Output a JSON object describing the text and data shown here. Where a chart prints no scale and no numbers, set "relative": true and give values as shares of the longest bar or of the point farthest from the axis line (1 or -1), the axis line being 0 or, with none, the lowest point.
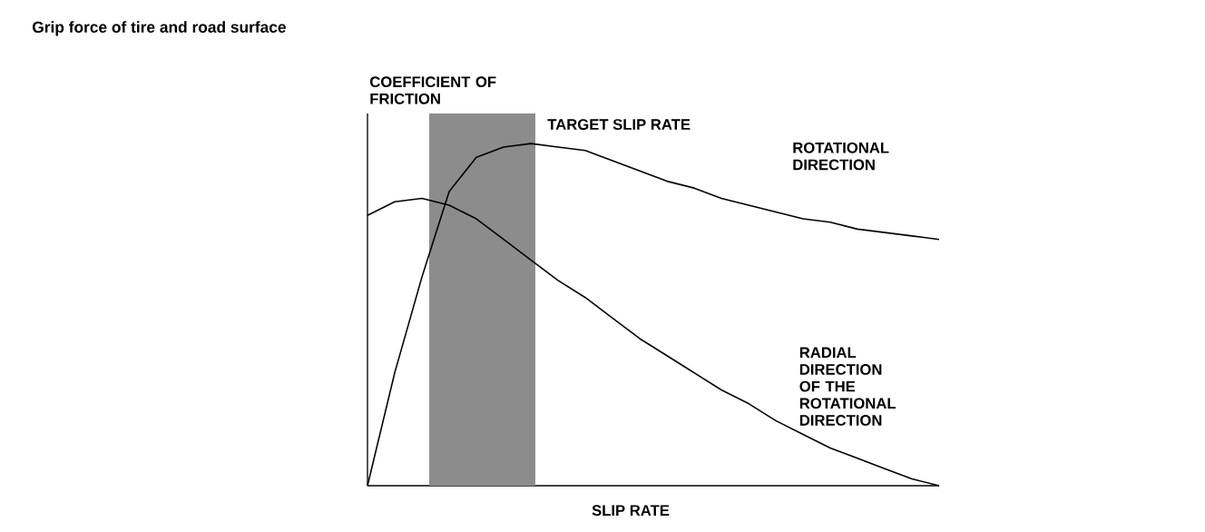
{
  "chart_data": {
    "type": "line",
    "title": "Grip force of tire and road surface",
    "xlabel": "SLIP RATE",
    "ylabel": "COEFFICIENT OF FRICTION",
    "relative": true,
    "categories": [
      null,
      null,
      null,
      null,
      null,
      null,
      null,
      null,
      null,
      null,
      null,
      null,
      null,
      null,
      null,
      null,
      null,
      null,
      null,
      null,
      null,
      null
    ],
    "annotations": [
      "TARGET SLIP RATE"
    ],
    "series": [
      {
        "name": "ROTATIONAL DIRECTION",
        "color": "#000000",
        "values": [
          0,
          0.33,
          0.61,
          0.86,
          0.96,
          0.99,
          1.0,
          0.99,
          0.98,
          0.95,
          0.92,
          0.89,
          0.87,
          0.84,
          0.82,
          0.8,
          0.78,
          0.77,
          0.75,
          0.74,
          0.73,
          0.72
        ]
      },
      {
        "name": "RADIAL DIRECTION OF THE ROTATIONAL DIRECTION",
        "color": "#000000",
        "values": [
          0.79,
          0.83,
          0.84,
          0.82,
          0.78,
          0.72,
          0.66,
          0.6,
          0.55,
          0.49,
          0.43,
          0.38,
          0.33,
          0.28,
          0.24,
          0.19,
          0.15,
          0.11,
          0.08,
          0.05,
          0.02,
          0
        ]
      }
    ]
  }
}
